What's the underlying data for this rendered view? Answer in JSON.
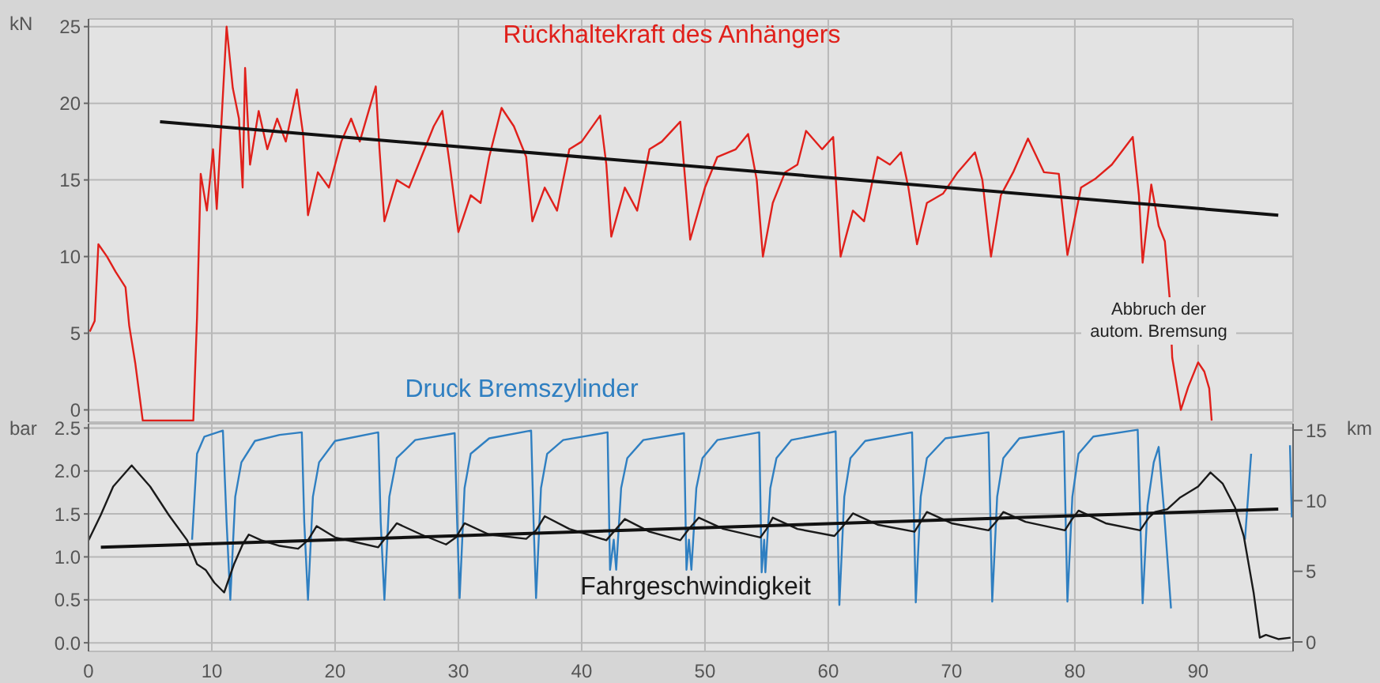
{
  "chart_data": [
    {
      "type": "line",
      "ylabel": "kN",
      "xlim": [
        0,
        97.7
      ],
      "xticks": [
        0,
        10,
        20,
        30,
        40,
        50,
        60,
        70,
        80,
        90
      ],
      "ylim": [
        -0.8,
        25.5
      ],
      "yticks": [
        0,
        5,
        10,
        15,
        20,
        25
      ],
      "tick_labels": "y",
      "grid": true,
      "legend": false,
      "marker": "none",
      "line_style": "solid",
      "annotations": [
        "Abbruch der autom. Bremsung"
      ],
      "series": [
        {
          "name": "Rückhaltekraft des Anhängers",
          "color": "#e0201b",
          "x": [
            0.1,
            0.5,
            0.8,
            1.5,
            2.2,
            3,
            3.3,
            3.8,
            4.4,
            8.5,
            8.8,
            9.1,
            9.6,
            10.1,
            10.4,
            11.2,
            11.7,
            12.2,
            12.5,
            12.7,
            13.1,
            13.8,
            14.5,
            15.3,
            16,
            16.9,
            17.4,
            17.8,
            18.6,
            19.5,
            20.5,
            21.3,
            22,
            23.3,
            23.6,
            24,
            25,
            26,
            27,
            28,
            28.7,
            29.3,
            30,
            31,
            31.8,
            32.5,
            33.5,
            34.5,
            35.5,
            36,
            37,
            38,
            39,
            40,
            41.5,
            42,
            42.4,
            43.5,
            44.5,
            45.5,
            46.5,
            48,
            48.8,
            50,
            51,
            52.5,
            53.5,
            54.2,
            54.7,
            55.5,
            56.5,
            57.5,
            58.2,
            59.5,
            60.4,
            61,
            62,
            62.9,
            64,
            65,
            65.9,
            66.5,
            67.2,
            68,
            69.3,
            70.5,
            71.9,
            72.5,
            73.2,
            74,
            75,
            76.2,
            77.5,
            78.7,
            79.4,
            80.5,
            81.7,
            83,
            84.7,
            85.2,
            85.5,
            86.2,
            86.8,
            87.3,
            87.7,
            87.9,
            88.6,
            89.2,
            90,
            90.5,
            90.9,
            91.1
          ],
          "values": [
            5.1,
            5.8,
            10.8,
            10,
            9,
            8,
            5.5,
            3,
            -0.7,
            -0.7,
            6,
            15.4,
            13,
            17,
            13.1,
            25,
            21,
            19,
            14.5,
            22.3,
            16,
            19.5,
            17,
            19,
            17.5,
            20.9,
            18,
            12.7,
            15.5,
            14.5,
            17.5,
            19,
            17.5,
            21.1,
            17,
            12.3,
            15,
            14.5,
            16.5,
            18.5,
            19.5,
            16,
            11.6,
            14,
            13.5,
            16.5,
            19.7,
            18.5,
            16.5,
            12.3,
            14.5,
            13,
            17,
            17.5,
            19.2,
            16,
            11.3,
            14.5,
            13,
            17,
            17.5,
            18.8,
            11.1,
            14.5,
            16.5,
            17,
            18,
            15,
            10,
            13.5,
            15.5,
            16,
            18.2,
            17,
            17.8,
            10,
            13,
            12.3,
            16.5,
            16,
            16.8,
            14.5,
            10.8,
            13.5,
            14.1,
            15.5,
            16.8,
            15,
            10,
            14,
            15.5,
            17.7,
            15.5,
            15.4,
            10.1,
            14.5,
            15.1,
            16,
            17.8,
            14,
            9.6,
            14.7,
            12,
            11,
            7.2,
            3.4,
            0,
            1.5,
            3.1,
            2.5,
            1.4,
            -0.7
          ]
        },
        {
          "type": "line",
          "color": "#111111",
          "x": [
            5.8,
            96.5
          ],
          "values": [
            18.8,
            12.7
          ]
        }
      ]
    },
    {
      "type": "line",
      "ylabel": "bar",
      "y2label": "km",
      "xlim": [
        0,
        97.7
      ],
      "xticks": [
        0,
        10,
        20,
        30,
        40,
        50,
        60,
        70,
        80,
        90
      ],
      "ylim": [
        -0.1,
        2.55
      ],
      "yticks": [
        {
          "value": 0,
          "label": "0.0"
        },
        0.5,
        {
          "value": 1,
          "label": "1.0"
        },
        1.5,
        {
          "value": 2,
          "label": "2.0"
        },
        2.5
      ],
      "y2lim": [
        -0.67,
        15.45
      ],
      "y2ticks": [
        0,
        5,
        10,
        15
      ],
      "grid": true,
      "legend": false,
      "marker": "none",
      "line_style": "solid",
      "series": [
        {
          "name": "Druck Bremszylinder",
          "color": "#2f7fc1",
          "x": [
            8.4,
            8.8,
            9.4,
            10.9,
            11.2,
            11.5,
            11.9,
            12.4,
            13.5,
            15.5,
            17.3,
            17.5,
            17.8,
            18.2,
            18.7,
            20,
            23.5,
            23.7,
            24.0,
            24.4,
            25,
            26.5,
            29.7,
            29.9,
            30.1,
            30.5,
            31,
            32.5,
            35.9,
            36.1,
            36.3,
            36.7,
            37.2,
            38.5,
            42.1,
            42.3,
            42.6,
            42.8,
            43.2,
            43.7,
            45,
            48.3,
            48.5,
            48.7,
            48.9,
            49.3,
            49.8,
            51,
            54.4,
            54.6,
            54.8,
            54.9,
            55.3,
            55.8,
            57,
            60.6,
            60.9,
            61.3,
            61.8,
            63,
            66.8,
            67.1,
            67.5,
            68,
            69.5,
            73,
            73.3,
            73.7,
            74.2,
            75.5,
            79.1,
            79.4,
            79.8,
            80.3,
            81.5,
            85.1,
            85.5,
            85.9,
            86.4,
            86.8,
            87.2,
            87.8,
            88.6,
            93.8,
            94.3,
            94.7,
            97.45,
            97.6
          ],
          "values": [
            1.2,
            2.2,
            2.4,
            2.47,
            1.4,
            0.5,
            1.7,
            2.1,
            2.35,
            2.42,
            2.45,
            1.4,
            0.5,
            1.7,
            2.1,
            2.35,
            2.45,
            1.4,
            0.5,
            1.7,
            2.15,
            2.36,
            2.44,
            1.4,
            0.52,
            1.8,
            2.2,
            2.38,
            2.47,
            1.4,
            0.52,
            1.8,
            2.2,
            2.36,
            2.45,
            0.85,
            1.2,
            0.85,
            1.8,
            2.15,
            2.36,
            2.44,
            0.85,
            1.2,
            0.85,
            1.8,
            2.15,
            2.36,
            2.45,
            0.82,
            1.2,
            0.82,
            1.8,
            2.15,
            2.36,
            2.46,
            0.44,
            1.7,
            2.15,
            2.35,
            2.45,
            0.47,
            1.7,
            2.15,
            2.38,
            2.45,
            0.48,
            1.7,
            2.15,
            2.38,
            2.46,
            0.48,
            1.7,
            2.2,
            2.4,
            2.48,
            0.46,
            1.6,
            2.1,
            2.28,
            1.6,
            0.4,
            null,
            1.2,
            2.2,
            null,
            2.3,
            1.46
          ]
        },
        {
          "name": "Fahrgeschwindigkeit",
          "color": "#1a1a1a",
          "axis": "y2",
          "x": [
            0,
            1,
            2,
            3.5,
            5,
            6.5,
            8,
            8.8,
            9.5,
            10.2,
            11,
            11.8,
            12.5,
            13,
            14,
            15.5,
            17,
            17.8,
            18.5,
            20,
            22,
            23.5,
            24.2,
            25,
            27,
            29,
            29.8,
            30.5,
            32.5,
            35.5,
            36.3,
            37,
            39,
            42,
            42.7,
            43.5,
            45.5,
            48,
            48.7,
            49.5,
            51.5,
            54.5,
            55,
            55.5,
            57.5,
            60.5,
            61.2,
            62,
            64,
            67,
            67.5,
            68,
            70,
            73,
            73.6,
            74.2,
            76,
            79.2,
            79.7,
            80.3,
            82.5,
            85.3,
            86,
            86.5,
            87.5,
            88.5,
            90,
            91,
            92,
            93,
            93.7,
            94.5,
            95,
            95.5,
            96.5,
            97.5
          ],
          "values": [
            7.2,
            9,
            11,
            12.5,
            11,
            9,
            7.2,
            5.5,
            5.1,
            4.2,
            3.5,
            5.5,
            6.9,
            7.6,
            7.2,
            6.8,
            6.6,
            7.2,
            8.2,
            7.4,
            7,
            6.7,
            7.5,
            8.4,
            7.6,
            6.9,
            7.4,
            8.4,
            7.6,
            7.3,
            7.9,
            8.9,
            8,
            7.2,
            7.9,
            8.7,
            7.8,
            7.2,
            8,
            8.8,
            8,
            7.4,
            8,
            8.8,
            8,
            7.5,
            8.2,
            9.1,
            8.3,
            7.8,
            8.5,
            9.2,
            8.4,
            7.9,
            8.5,
            9.2,
            8.5,
            7.9,
            8.6,
            9.3,
            8.4,
            7.9,
            8.8,
            9.2,
            9.4,
            10.2,
            11,
            12,
            11.2,
            9.5,
            7.5,
            3.5,
            0.3,
            0.5,
            0.2,
            0.3
          ]
        },
        {
          "type": "line",
          "color": "#111111",
          "axis": "y2",
          "x": [
            1,
            96.5
          ],
          "values": [
            6.7,
            9.4
          ]
        }
      ]
    }
  ]
}
